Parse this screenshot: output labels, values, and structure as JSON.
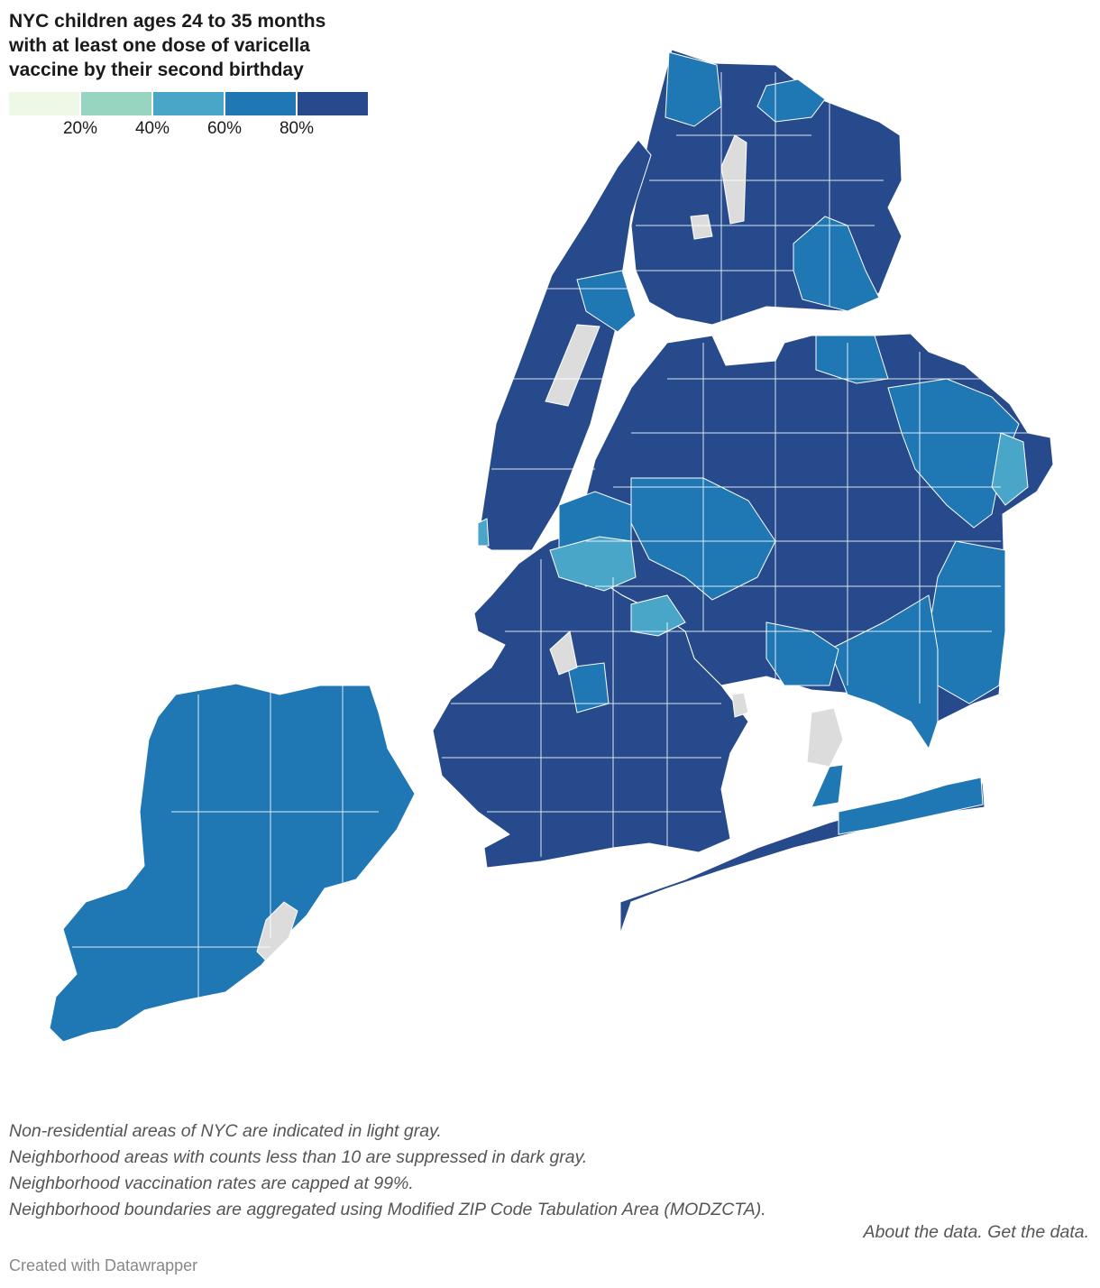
{
  "title_lines": [
    "NYC children ages 24 to 35 months",
    "with at least one dose of varicella",
    "vaccine by their second birthday"
  ],
  "legend": {
    "colors": [
      "#eef8e6",
      "#98d5c1",
      "#4aa6c9",
      "#1f77b4",
      "#264a8b"
    ],
    "ticks": [
      "20%",
      "40%",
      "60%",
      "80%"
    ]
  },
  "map": {
    "colors": {
      "highest": "#264a8b",
      "high": "#1f77b4",
      "middle": "#4aa6c9",
      "non_residential": "#dcdcdc"
    },
    "regions": [
      {
        "name": "bronx",
        "class": "highest"
      },
      {
        "name": "manhattan",
        "class": "highest"
      },
      {
        "name": "queens",
        "class": "highest"
      },
      {
        "name": "brooklyn",
        "class": "highest"
      },
      {
        "name": "staten-island",
        "class": "high"
      },
      {
        "name": "rockaway",
        "class": "highest"
      }
    ]
  },
  "notes": [
    "Non-residential areas of NYC are indicated in light gray.",
    "Neighborhood areas with counts less than 10 are suppressed in dark gray.",
    "Neighborhood vaccination rates are capped at 99%.",
    "Neighborhood boundaries are aggregated using Modified ZIP Code Tabulation Area (MODZCTA)."
  ],
  "links": {
    "about": "About the data.",
    "get": "Get the data."
  },
  "credit": "Created with Datawrapper"
}
